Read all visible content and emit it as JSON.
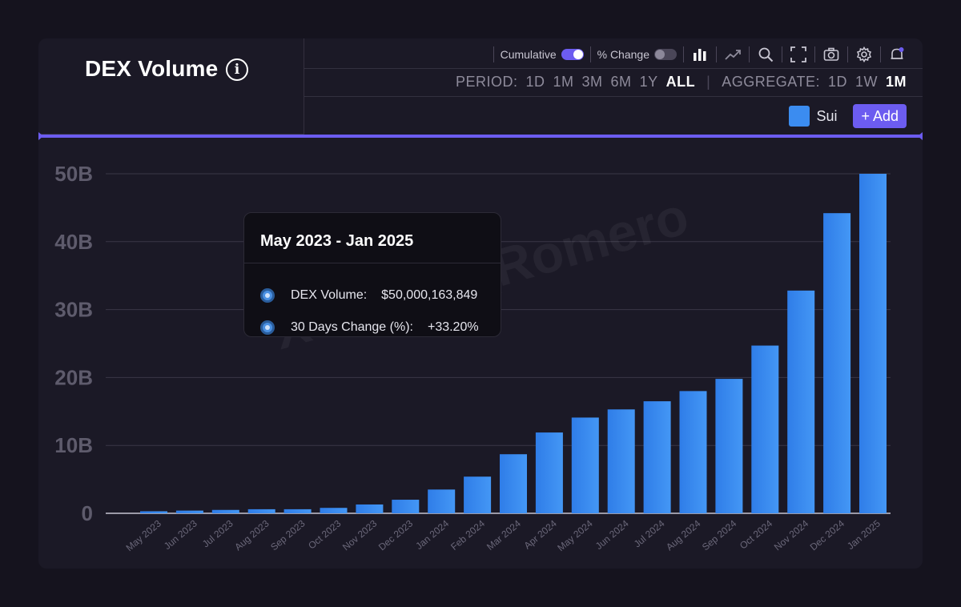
{
  "header": {
    "title": "DEX Volume",
    "info_icon": "info-icon"
  },
  "toolbar": {
    "cumulative_label": "Cumulative",
    "cumulative_on": true,
    "pct_change_label": "% Change",
    "pct_change_on": false,
    "icons": [
      "bar-chart-icon",
      "line-chart-icon",
      "search-icon",
      "fullscreen-icon",
      "camera-icon",
      "gear-icon",
      "bell-icon"
    ]
  },
  "period": {
    "label": "PERIOD:",
    "options": [
      "1D",
      "1M",
      "3M",
      "6M",
      "1Y",
      "ALL"
    ],
    "selected": "ALL"
  },
  "aggregate": {
    "label": "AGGREGATE:",
    "options": [
      "1D",
      "1W",
      "1M"
    ],
    "selected": "1M"
  },
  "legend": {
    "series_name": "Sui",
    "add_label": "+ Add"
  },
  "colors": {
    "accent": "#6c5cf0",
    "bar": "#3b8cf0",
    "background": "#1b1926"
  },
  "tooltip": {
    "title": "May 2023 - Jan 2025",
    "rows": [
      {
        "key": "DEX Volume:",
        "value": "$50,000,163,849"
      },
      {
        "key": "30 Days Change (%):",
        "value": "+33.20%"
      }
    ]
  },
  "watermark": "XTorero_Romero",
  "chart_data": {
    "type": "bar",
    "title": "DEX Volume",
    "categories": [
      "May 2023",
      "Jun 2023",
      "Jul 2023",
      "Aug 2023",
      "Sep 2023",
      "Oct 2023",
      "Nov 2023",
      "Dec 2023",
      "Jan 2024",
      "Feb 2024",
      "Mar 2024",
      "Apr 2024",
      "May 2024",
      "Jun 2024",
      "Jul 2024",
      "Aug 2024",
      "Sep 2024",
      "Oct 2024",
      "Nov 2024",
      "Dec 2024",
      "Jan 2025"
    ],
    "series": [
      {
        "name": "Sui",
        "values": [
          0.3,
          0.4,
          0.5,
          0.6,
          0.6,
          0.8,
          1.3,
          2.0,
          3.5,
          5.4,
          8.7,
          11.9,
          14.1,
          15.3,
          16.5,
          18.0,
          19.8,
          24.7,
          32.8,
          44.2,
          50.0
        ]
      }
    ],
    "y_unit": "B",
    "yticks": [
      "0",
      "10B",
      "20B",
      "30B",
      "40B",
      "50B"
    ],
    "ylim": [
      0,
      50
    ],
    "grid": true,
    "cumulative": true
  }
}
